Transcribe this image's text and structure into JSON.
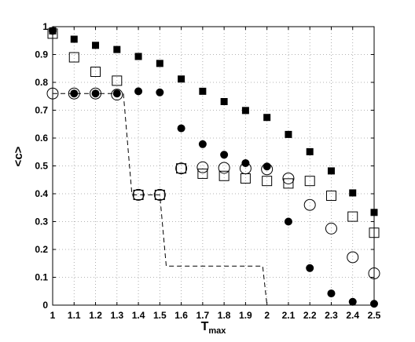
{
  "chart_data": {
    "type": "scatter",
    "title": "",
    "xlabel": "T",
    "xlabel_sub": "max",
    "ylabel": "<c>",
    "xlim": [
      1,
      2.5
    ],
    "ylim": [
      0,
      1
    ],
    "xticks": [
      "1",
      "1.1",
      "1.2",
      "1.3",
      "1.4",
      "1.5",
      "1.6",
      "1.7",
      "1.8",
      "1.9",
      "2",
      "2.1",
      "2.2",
      "2.3",
      "2.4",
      "2.5"
    ],
    "yticks": [
      "0",
      "0.1",
      "0.2",
      "0.3",
      "0.4",
      "0.5",
      "0.6",
      "0.7",
      "0.8",
      "0.9",
      "1"
    ],
    "grid": true,
    "x": [
      1.0,
      1.1,
      1.2,
      1.3,
      1.4,
      1.5,
      1.6,
      1.7,
      1.8,
      1.9,
      2.0,
      2.1,
      2.2,
      2.3,
      2.4,
      2.5
    ],
    "series": [
      {
        "marker": "filled-square",
        "values": [
          0.985,
          0.955,
          0.933,
          0.918,
          0.893,
          0.868,
          0.812,
          0.768,
          0.731,
          0.699,
          0.674,
          0.613,
          0.551,
          0.482,
          0.403,
          0.333
        ]
      },
      {
        "marker": "open-square",
        "values": [
          0.975,
          0.89,
          0.838,
          0.806,
          0.396,
          0.396,
          0.491,
          0.472,
          0.464,
          0.455,
          0.446,
          0.437,
          0.446,
          0.393,
          0.318,
          0.26
        ]
      },
      {
        "marker": "filled-circle",
        "values": [
          0.985,
          0.76,
          0.76,
          0.76,
          0.768,
          0.764,
          0.635,
          0.578,
          0.54,
          0.51,
          0.498,
          0.3,
          0.133,
          0.042,
          0.012,
          0.005
        ]
      },
      {
        "marker": "open-circle",
        "values": [
          0.76,
          0.76,
          0.76,
          0.756,
          0.396,
          0.396,
          0.491,
          0.495,
          0.493,
          0.491,
          0.488,
          0.455,
          0.36,
          0.275,
          0.172,
          0.114
        ]
      },
      {
        "marker": "dashed-line",
        "x": [
          1.0,
          1.33,
          1.37,
          1.5,
          1.53,
          1.98,
          2.0
        ],
        "values": [
          0.76,
          0.76,
          0.396,
          0.396,
          0.14,
          0.14,
          0.0
        ]
      }
    ]
  }
}
